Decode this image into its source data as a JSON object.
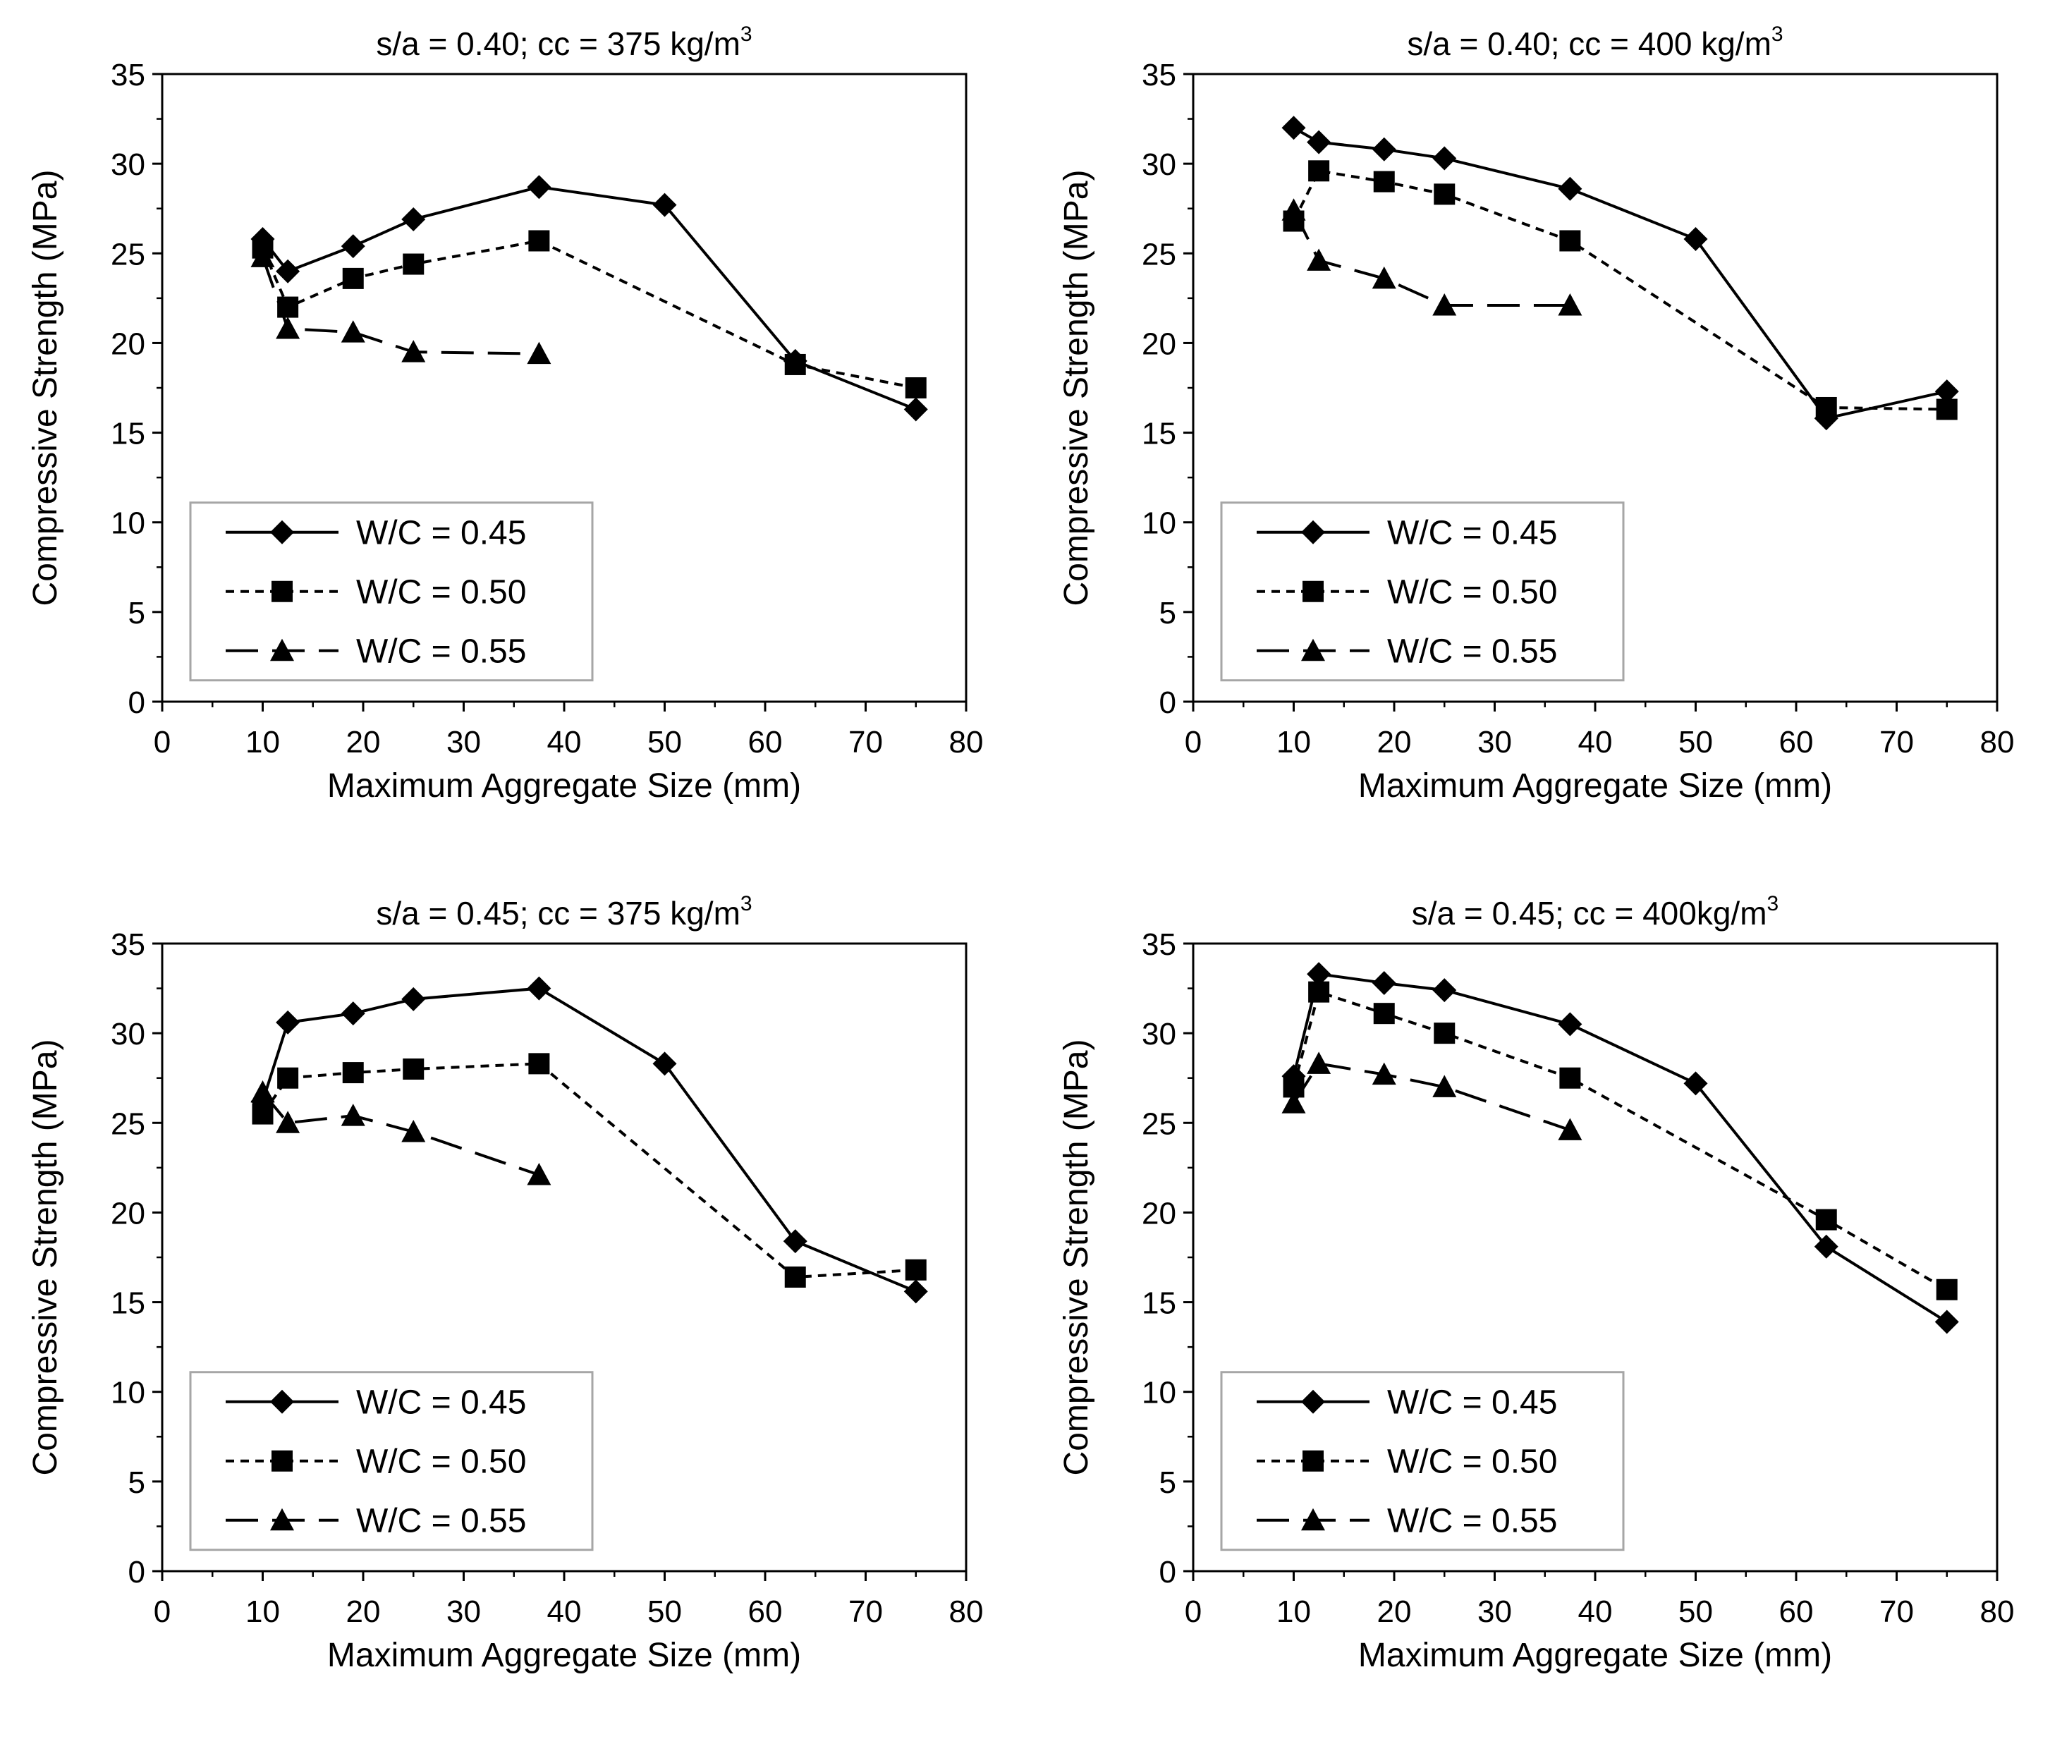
{
  "chart_data": [
    {
      "type": "line",
      "title": "s/a = 0.40; cc = 375 kg/m",
      "title_sup": "3",
      "xlabel": "Maximum Aggregate Size (mm)",
      "ylabel": "Compressive Strength (MPa)",
      "xlim": [
        0,
        80
      ],
      "ylim": [
        0,
        35
      ],
      "xticks": [
        "0",
        "10",
        "20",
        "30",
        "40",
        "50",
        "60",
        "70",
        "80"
      ],
      "yticks": [
        "0",
        "5",
        "10",
        "15",
        "20",
        "25",
        "30",
        "35"
      ],
      "grid": false,
      "legend": "bottom-left",
      "series": [
        {
          "name": "W/C = 0.45",
          "marker": "diamond",
          "line": "solid",
          "x": [
            10,
            12.5,
            19,
            25,
            37.5,
            50,
            63,
            75
          ],
          "y": [
            25.8,
            24.0,
            25.4,
            26.9,
            28.7,
            27.7,
            19.0,
            16.3
          ]
        },
        {
          "name": "W/C = 0.50",
          "marker": "square",
          "line": "dotted",
          "x": [
            10,
            12.5,
            19,
            25,
            37.5,
            63,
            75
          ],
          "y": [
            25.3,
            22.0,
            23.6,
            24.4,
            25.7,
            18.8,
            17.5
          ]
        },
        {
          "name": "W/C = 0.55",
          "marker": "triangle",
          "line": "dashed",
          "x": [
            10,
            12.5,
            19,
            25,
            37.5
          ],
          "y": [
            24.8,
            20.8,
            20.6,
            19.5,
            19.4
          ]
        }
      ]
    },
    {
      "type": "line",
      "title": "s/a = 0.40; cc = 400 kg/m",
      "title_sup": "3",
      "xlabel": "Maximum Aggregate Size (mm)",
      "ylabel": "Compressive Strength (MPa)",
      "xlim": [
        0,
        80
      ],
      "ylim": [
        0,
        35
      ],
      "xticks": [
        "0",
        "10",
        "20",
        "30",
        "40",
        "50",
        "60",
        "70",
        "80"
      ],
      "yticks": [
        "0",
        "5",
        "10",
        "15",
        "20",
        "25",
        "30",
        "35"
      ],
      "grid": false,
      "legend": "bottom-left",
      "series": [
        {
          "name": "W/C = 0.45",
          "marker": "diamond",
          "line": "solid",
          "x": [
            10,
            12.5,
            19,
            25,
            37.5,
            50,
            63,
            75
          ],
          "y": [
            32.0,
            31.2,
            30.8,
            30.3,
            28.6,
            25.8,
            15.8,
            17.3
          ]
        },
        {
          "name": "W/C = 0.50",
          "marker": "square",
          "line": "dotted",
          "x": [
            10,
            12.5,
            19,
            25,
            37.5,
            63,
            75
          ],
          "y": [
            26.8,
            29.6,
            29.0,
            28.3,
            25.7,
            16.4,
            16.3
          ]
        },
        {
          "name": "W/C = 0.55",
          "marker": "triangle",
          "line": "dashed",
          "x": [
            10,
            12.5,
            19,
            25,
            37.5
          ],
          "y": [
            27.4,
            24.6,
            23.6,
            22.1,
            22.1
          ]
        }
      ]
    },
    {
      "type": "line",
      "title": "s/a = 0.45; cc = 375 kg/m",
      "title_sup": "3",
      "xlabel": "Maximum Aggregate Size (mm)",
      "ylabel": "Compressive Strength (MPa)",
      "xlim": [
        0,
        80
      ],
      "ylim": [
        0,
        35
      ],
      "xticks": [
        "0",
        "10",
        "20",
        "30",
        "40",
        "50",
        "60",
        "70",
        "80"
      ],
      "yticks": [
        "0",
        "5",
        "10",
        "15",
        "20",
        "25",
        "30",
        "35"
      ],
      "grid": false,
      "legend": "bottom-left",
      "series": [
        {
          "name": "W/C = 0.45",
          "marker": "diamond",
          "line": "solid",
          "x": [
            10,
            12.5,
            19,
            25,
            37.5,
            50,
            63,
            75
          ],
          "y": [
            26.2,
            30.6,
            31.1,
            31.9,
            32.5,
            28.3,
            18.4,
            15.6
          ]
        },
        {
          "name": "W/C = 0.50",
          "marker": "square",
          "line": "dotted",
          "x": [
            10,
            12.5,
            19,
            25,
            37.5,
            63,
            75
          ],
          "y": [
            25.5,
            27.5,
            27.8,
            28.0,
            28.3,
            16.4,
            16.8
          ]
        },
        {
          "name": "W/C = 0.55",
          "marker": "triangle",
          "line": "dashed",
          "x": [
            10,
            12.5,
            19,
            25,
            37.5
          ],
          "y": [
            26.7,
            25.0,
            25.4,
            24.5,
            22.1
          ]
        }
      ]
    },
    {
      "type": "line",
      "title": "s/a = 0.45; cc = 400kg/m",
      "title_sup": "3",
      "xlabel": "Maximum Aggregate Size (mm)",
      "ylabel": "Compressive Strength (MPa)",
      "xlim": [
        0,
        80
      ],
      "ylim": [
        0,
        35
      ],
      "xticks": [
        "0",
        "10",
        "20",
        "30",
        "40",
        "50",
        "60",
        "70",
        "80"
      ],
      "yticks": [
        "0",
        "5",
        "10",
        "15",
        "20",
        "25",
        "30",
        "35"
      ],
      "grid": false,
      "legend": "bottom-left",
      "series": [
        {
          "name": "W/C = 0.45",
          "marker": "diamond",
          "line": "solid",
          "x": [
            10,
            12.5,
            19,
            25,
            37.5,
            50,
            63,
            75
          ],
          "y": [
            27.6,
            33.3,
            32.8,
            32.4,
            30.5,
            27.2,
            18.1,
            13.9
          ]
        },
        {
          "name": "W/C = 0.50",
          "marker": "square",
          "line": "dotted",
          "x": [
            10,
            12.5,
            19,
            25,
            37.5,
            63,
            75
          ],
          "y": [
            27.0,
            32.3,
            31.1,
            30.0,
            27.5,
            19.6,
            15.7
          ]
        },
        {
          "name": "W/C = 0.55",
          "marker": "triangle",
          "line": "dashed",
          "x": [
            10,
            12.5,
            19,
            25,
            37.5
          ],
          "y": [
            26.1,
            28.3,
            27.7,
            27.0,
            24.6
          ]
        }
      ]
    }
  ]
}
